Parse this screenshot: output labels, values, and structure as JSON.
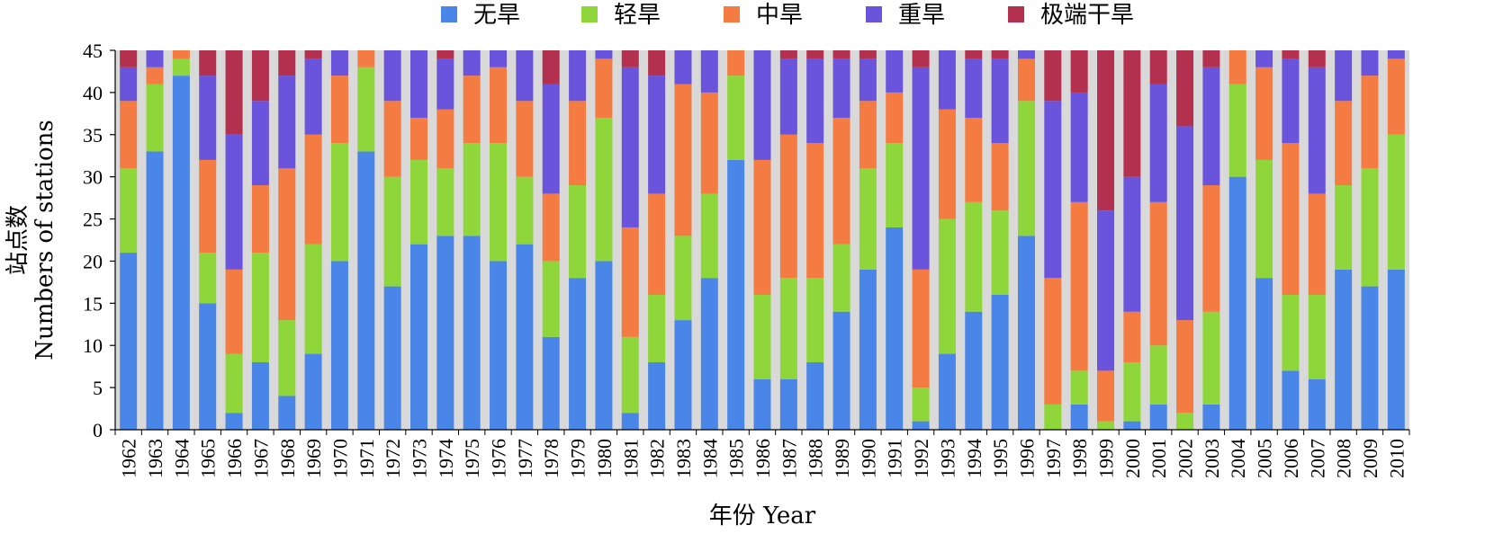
{
  "chart_data": {
    "type": "bar",
    "stacked": true,
    "xlabel": "年份 Year",
    "ylabel_cn": "站点数",
    "ylabel_en": "Numbers of stations",
    "ylim": [
      0,
      45
    ],
    "yticks": [
      0,
      5,
      10,
      15,
      20,
      25,
      30,
      35,
      40,
      45
    ],
    "grid": false,
    "legend_position": "top",
    "plot_background": "#d9d9d9",
    "categories": [
      "1962",
      "1963",
      "1964",
      "1965",
      "1966",
      "1967",
      "1968",
      "1969",
      "1970",
      "1971",
      "1972",
      "1973",
      "1974",
      "1975",
      "1976",
      "1977",
      "1978",
      "1979",
      "1980",
      "1981",
      "1982",
      "1983",
      "1984",
      "1985",
      "1986",
      "1987",
      "1988",
      "1989",
      "1990",
      "1991",
      "1992",
      "1993",
      "1994",
      "1995",
      "1996",
      "1997",
      "1998",
      "1999",
      "2000",
      "2001",
      "2002",
      "2003",
      "2004",
      "2005",
      "2006",
      "2007",
      "2008",
      "2009",
      "2010"
    ],
    "series": [
      {
        "name": "无旱",
        "color": "#4a86e8",
        "values": [
          21,
          33,
          42,
          15,
          2,
          8,
          4,
          9,
          20,
          33,
          17,
          22,
          23,
          23,
          20,
          22,
          11,
          18,
          20,
          2,
          8,
          13,
          18,
          32,
          6,
          6,
          8,
          14,
          19,
          24,
          1,
          9,
          14,
          16,
          23,
          0,
          3,
          0,
          1,
          3,
          0,
          3,
          30,
          18,
          7,
          6,
          19,
          17,
          19
        ]
      },
      {
        "name": "轻旱",
        "color": "#8fd63a",
        "values": [
          10,
          8,
          2,
          6,
          7,
          13,
          9,
          13,
          14,
          10,
          13,
          10,
          8,
          11,
          14,
          8,
          9,
          11,
          17,
          9,
          8,
          10,
          10,
          10,
          10,
          12,
          10,
          8,
          12,
          10,
          4,
          16,
          13,
          10,
          16,
          3,
          4,
          1,
          7,
          7,
          2,
          11,
          11,
          14,
          9,
          10,
          10,
          14,
          16
        ]
      },
      {
        "name": "中旱",
        "color": "#f47b42",
        "values": [
          8,
          2,
          1,
          11,
          10,
          8,
          18,
          13,
          8,
          2,
          9,
          5,
          7,
          8,
          9,
          9,
          8,
          10,
          7,
          13,
          12,
          18,
          12,
          3,
          16,
          17,
          16,
          15,
          8,
          6,
          14,
          13,
          10,
          8,
          5,
          15,
          20,
          6,
          6,
          17,
          11,
          15,
          4,
          11,
          18,
          12,
          10,
          11,
          9
        ]
      },
      {
        "name": "重旱",
        "color": "#6a54dc",
        "values": [
          4,
          2,
          0,
          10,
          16,
          10,
          11,
          9,
          3,
          0,
          6,
          8,
          6,
          3,
          2,
          6,
          13,
          6,
          1,
          19,
          14,
          4,
          5,
          0,
          13,
          9,
          10,
          7,
          5,
          5,
          24,
          7,
          7,
          10,
          1,
          21,
          13,
          19,
          16,
          14,
          23,
          14,
          0,
          2,
          10,
          15,
          6,
          3,
          1
        ]
      },
      {
        "name": "极端干旱",
        "color": "#b3304e",
        "values": [
          2,
          0,
          0,
          3,
          10,
          6,
          3,
          1,
          0,
          0,
          0,
          0,
          1,
          0,
          0,
          0,
          4,
          0,
          0,
          2,
          3,
          0,
          0,
          0,
          0,
          1,
          1,
          1,
          1,
          0,
          2,
          0,
          1,
          1,
          0,
          6,
          5,
          19,
          15,
          4,
          9,
          2,
          0,
          0,
          1,
          2,
          0,
          0,
          0
        ]
      }
    ]
  }
}
